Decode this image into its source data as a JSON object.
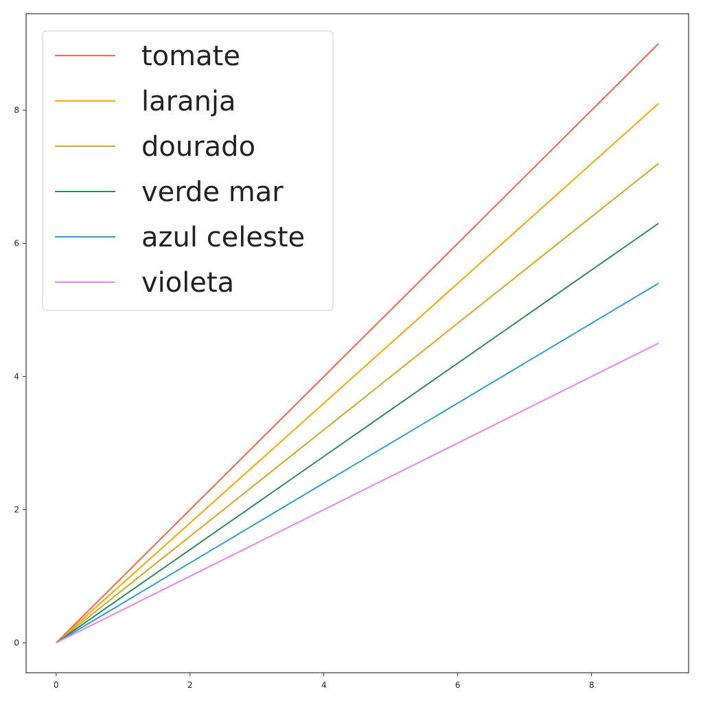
{
  "chart_data": {
    "type": "line",
    "title": "",
    "xlabel": "",
    "ylabel": "",
    "xlim": [
      -0.45,
      9.45
    ],
    "ylim": [
      -0.45,
      9.45
    ],
    "xticks": [
      0,
      2,
      4,
      6,
      8
    ],
    "yticks": [
      0,
      2,
      4,
      6,
      8
    ],
    "grid": false,
    "legend_position": "top-left",
    "x": [
      0,
      9
    ],
    "series": [
      {
        "name": "tomate",
        "color": "#ff6347",
        "values": [
          0,
          9
        ]
      },
      {
        "name": "laranja",
        "color": "#ffa500",
        "values": [
          0,
          8.1
        ]
      },
      {
        "name": "dourado",
        "color": "#daa520",
        "values": [
          0,
          7.2
        ]
      },
      {
        "name": "verde mar",
        "color": "#2e8b57",
        "values": [
          0,
          6.3
        ]
      },
      {
        "name": "azul celeste",
        "color": "#2e9fd6",
        "values": [
          0,
          5.4
        ]
      },
      {
        "name": "violeta",
        "color": "#ee82ee",
        "values": [
          0,
          4.5
        ]
      }
    ]
  }
}
